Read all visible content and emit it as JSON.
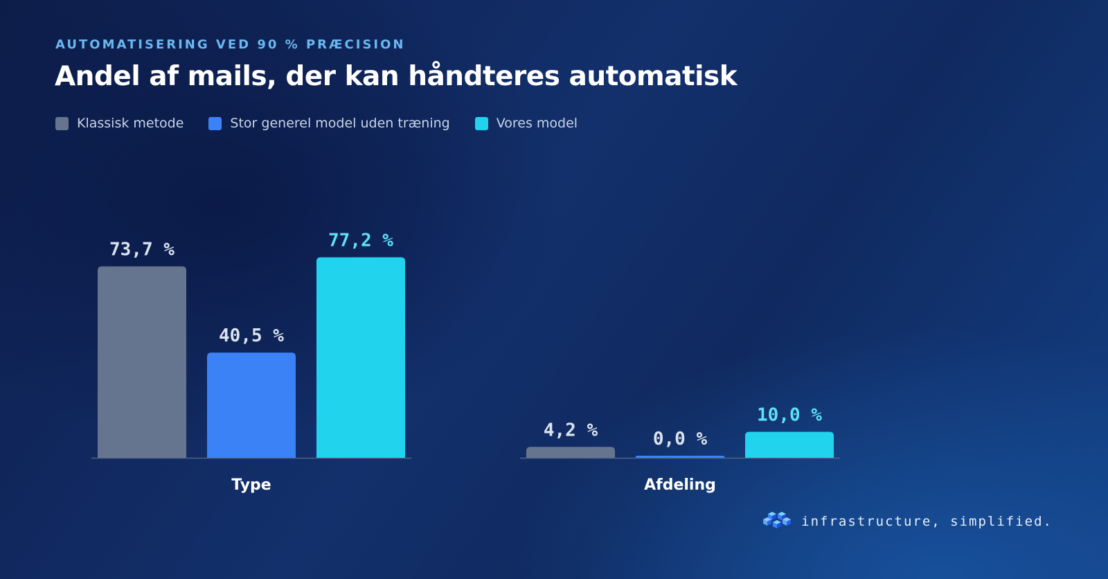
{
  "header": {
    "eyebrow": "AUTOMATISERING VED 90 % PRÆCISION",
    "title": "Andel af mails, der kan håndteres automatisk"
  },
  "legend": [
    {
      "label": "Klassisk metode",
      "color": "#66758f"
    },
    {
      "label": "Stor generel model uden træning",
      "color": "#3b82f6"
    },
    {
      "label": "Vores model",
      "color": "#22d3ee"
    }
  ],
  "footer": {
    "tagline": "infrastructure, simplified.",
    "logo_icon": "stacked-cubes-icon"
  },
  "chart_data": {
    "type": "bar",
    "categories": [
      "Type",
      "Afdeling"
    ],
    "series": [
      {
        "name": "Klassisk metode",
        "values": [
          73.7,
          4.2
        ],
        "labels": [
          "73,7 %",
          "4,2 %"
        ],
        "color": "#66758f"
      },
      {
        "name": "Stor generel model uden træning",
        "values": [
          40.5,
          0.0
        ],
        "labels": [
          "40,5 %",
          "0,0 %"
        ],
        "color": "#3b82f6"
      },
      {
        "name": "Vores model",
        "values": [
          77.2,
          10.0
        ],
        "labels": [
          "77,2 %",
          "10,0 %"
        ],
        "color": "#22d3ee"
      }
    ],
    "title": "Andel af mails, der kan håndteres automatisk",
    "ylim": [
      0,
      100
    ],
    "grid": false,
    "legend_position": "top-left",
    "highlight_series": "Vores model"
  }
}
